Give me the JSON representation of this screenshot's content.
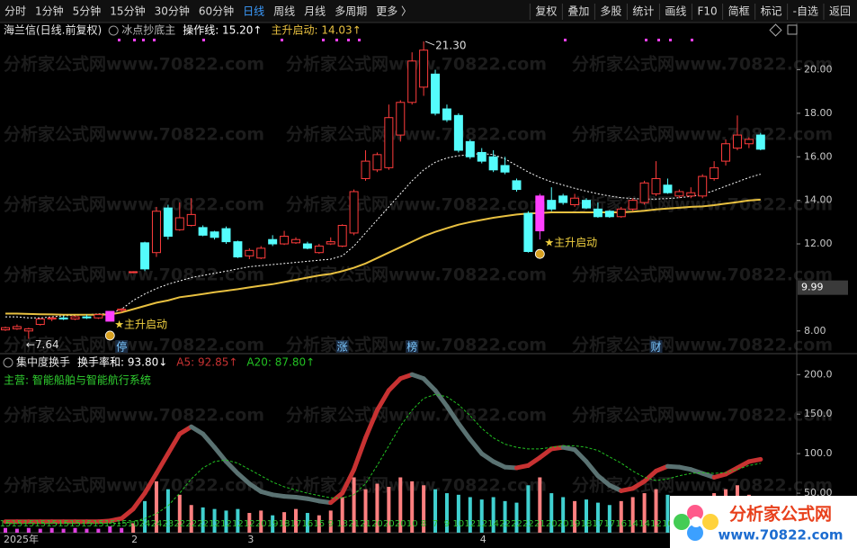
{
  "toolbar": {
    "periods": [
      "分时",
      "1分钟",
      "5分钟",
      "15分钟",
      "30分钟",
      "60分钟",
      "日线",
      "周线",
      "月线",
      "多周期",
      "更多 〉"
    ],
    "active": "日线",
    "tools": [
      "复权",
      "叠加",
      "多股",
      "统计",
      "画线",
      "F10",
      "简框",
      "标记",
      "-自选",
      "返回"
    ]
  },
  "header": {
    "title": "海兰信(日线.前复权)",
    "indicator": "冰点抄底主"
  },
  "watermark": "分析家公式网www.70822.com",
  "logo": {
    "name": "分析家公式网",
    "url": "www.70822.com"
  },
  "chart_data": [
    {
      "type": "candlestick",
      "categories": [
        "2025年",
        null,
        null,
        null,
        null,
        null,
        null,
        null,
        null,
        null,
        null,
        "2",
        null,
        null,
        null,
        null,
        null,
        null,
        null,
        null,
        null,
        "3",
        null,
        null,
        null,
        null,
        null,
        null,
        null,
        null,
        null,
        null,
        null,
        null,
        null,
        null,
        null,
        null,
        null,
        null,
        null,
        "4",
        null,
        null,
        null,
        null,
        null,
        null,
        null,
        null,
        null,
        null,
        null,
        null,
        null,
        null,
        null,
        null,
        null,
        null,
        null,
        null,
        null,
        null,
        null,
        null
      ],
      "candles": [
        [
          8.05,
          8.2,
          8.0,
          8.15
        ],
        [
          8.1,
          8.3,
          8.05,
          8.2
        ],
        [
          8.0,
          8.15,
          7.64,
          8.1
        ],
        [
          8.3,
          8.6,
          8.25,
          8.55
        ],
        [
          8.55,
          8.65,
          8.45,
          8.6
        ],
        [
          8.6,
          8.7,
          8.5,
          8.55
        ],
        [
          8.55,
          8.7,
          8.5,
          8.65
        ],
        [
          8.65,
          8.75,
          8.55,
          8.6
        ],
        [
          8.6,
          8.8,
          8.55,
          8.75
        ],
        [
          8.45,
          8.9,
          8.45,
          8.9
        ],
        [
          8.95,
          9.05,
          8.85,
          9.0
        ],
        [
          10.7,
          10.75,
          10.65,
          10.72
        ],
        [
          12.05,
          12.1,
          10.75,
          10.85
        ],
        [
          11.6,
          13.7,
          11.4,
          13.5
        ],
        [
          13.65,
          13.8,
          12.2,
          12.35
        ],
        [
          12.65,
          13.9,
          12.6,
          13.2
        ],
        [
          12.85,
          14.1,
          12.8,
          13.35
        ],
        [
          12.75,
          12.85,
          12.35,
          12.4
        ],
        [
          12.55,
          12.6,
          12.2,
          12.3
        ],
        [
          12.7,
          12.8,
          12.0,
          12.1
        ],
        [
          12.1,
          12.15,
          11.35,
          11.4
        ],
        [
          11.45,
          11.8,
          11.3,
          11.7
        ],
        [
          11.35,
          11.9,
          11.3,
          11.8
        ],
        [
          12.2,
          12.4,
          11.9,
          12.0
        ],
        [
          12.0,
          12.6,
          11.95,
          12.35
        ],
        [
          12.05,
          12.3,
          12.0,
          12.2
        ],
        [
          12.0,
          12.1,
          11.75,
          11.8
        ],
        [
          11.6,
          12.0,
          11.55,
          11.9
        ],
        [
          12.0,
          12.3,
          11.95,
          12.1
        ],
        [
          11.9,
          12.9,
          11.85,
          12.85
        ],
        [
          12.5,
          14.5,
          12.4,
          14.4
        ],
        [
          15.0,
          16.3,
          14.9,
          15.8
        ],
        [
          15.4,
          16.2,
          15.3,
          16.1
        ],
        [
          15.5,
          18.4,
          15.4,
          17.8
        ],
        [
          17.0,
          18.6,
          16.7,
          18.5
        ],
        [
          18.5,
          20.8,
          18.4,
          20.4
        ],
        [
          19.2,
          21.3,
          18.8,
          20.9
        ],
        [
          19.8,
          20.0,
          17.9,
          18.0
        ],
        [
          18.2,
          18.4,
          17.6,
          17.7
        ],
        [
          17.9,
          18.0,
          16.2,
          16.3
        ],
        [
          16.7,
          16.8,
          15.9,
          16.0
        ],
        [
          16.2,
          16.4,
          15.7,
          15.8
        ],
        [
          16.0,
          16.3,
          15.3,
          15.4
        ],
        [
          15.6,
          16.0,
          15.2,
          15.3
        ],
        [
          14.9,
          15.0,
          14.4,
          14.5
        ],
        [
          13.4,
          13.5,
          11.6,
          11.65
        ],
        [
          12.6,
          14.3,
          12.2,
          14.2
        ],
        [
          14.0,
          14.6,
          13.5,
          13.6
        ],
        [
          14.2,
          14.3,
          13.8,
          13.9
        ],
        [
          13.8,
          14.3,
          13.7,
          14.1
        ],
        [
          14.0,
          14.1,
          13.6,
          13.65
        ],
        [
          13.6,
          13.9,
          13.2,
          13.25
        ],
        [
          13.5,
          13.55,
          13.2,
          13.25
        ],
        [
          13.25,
          13.7,
          13.2,
          13.6
        ],
        [
          13.6,
          14.1,
          13.5,
          14.0
        ],
        [
          13.9,
          14.9,
          13.8,
          14.8
        ],
        [
          14.3,
          15.8,
          14.2,
          15.0
        ],
        [
          14.7,
          15.0,
          14.3,
          14.35
        ],
        [
          14.2,
          14.5,
          14.1,
          14.4
        ],
        [
          14.2,
          14.6,
          14.1,
          14.35
        ],
        [
          14.2,
          15.2,
          14.1,
          15.1
        ],
        [
          15.0,
          15.8,
          14.9,
          15.5
        ],
        [
          15.8,
          16.8,
          15.6,
          16.6
        ],
        [
          16.4,
          17.9,
          16.3,
          17.0
        ],
        [
          16.6,
          16.9,
          16.4,
          16.8
        ],
        [
          17.0,
          17.1,
          16.3,
          16.35
        ]
      ],
      "palette": {
        "up": "#ff3c3c",
        "down": "#54fcfc",
        "signal": "#ff40ff"
      },
      "annotations": [
        null,
        null,
        null,
        null,
        null,
        null,
        null,
        null,
        null,
        "★主升启动",
        null,
        null,
        null,
        null,
        null,
        null,
        null,
        null,
        null,
        null,
        null,
        null,
        null,
        null,
        null,
        null,
        null,
        null,
        null,
        null,
        null,
        null,
        null,
        null,
        null,
        null,
        null,
        null,
        null,
        null,
        null,
        null,
        null,
        null,
        null,
        null,
        "★主升启动",
        null,
        null,
        null,
        null,
        null,
        null,
        null,
        null,
        null,
        null,
        null,
        null,
        null,
        null,
        null,
        null,
        null,
        null,
        null
      ],
      "events": [
        null,
        null,
        null,
        null,
        null,
        null,
        null,
        null,
        null,
        null,
        "停",
        null,
        null,
        null,
        null,
        null,
        null,
        null,
        null,
        null,
        null,
        null,
        null,
        null,
        null,
        null,
        null,
        null,
        null,
        "涨",
        null,
        null,
        null,
        null,
        null,
        "榜",
        null,
        null,
        null,
        null,
        null,
        null,
        null,
        null,
        null,
        null,
        null,
        null,
        null,
        null,
        null,
        null,
        null,
        null,
        null,
        null,
        "财",
        null,
        null,
        null,
        null,
        null,
        null,
        null,
        null,
        null
      ],
      "series": [
        {
          "name": "操作线: 15.20↑",
          "color": "#ffffff",
          "dash": true,
          "values": [
            8.65,
            8.65,
            8.6,
            8.6,
            8.65,
            8.7,
            8.72,
            8.75,
            8.78,
            8.8,
            9.0,
            9.4,
            9.7,
            9.95,
            10.15,
            10.3,
            10.45,
            10.55,
            10.65,
            10.75,
            10.85,
            10.95,
            11.0,
            11.05,
            11.1,
            11.15,
            11.2,
            11.25,
            11.3,
            11.45,
            11.9,
            12.5,
            13.1,
            13.7,
            14.3,
            14.9,
            15.4,
            15.75,
            15.95,
            16.05,
            16.1,
            16.15,
            16.1,
            15.9,
            15.6,
            15.3,
            15.05,
            14.85,
            14.7,
            14.55,
            14.42,
            14.3,
            14.2,
            14.12,
            14.08,
            14.06,
            14.06,
            14.08,
            14.12,
            14.18,
            14.28,
            14.45,
            14.65,
            14.85,
            15.05,
            15.2
          ]
        },
        {
          "name": "主升启动: 14.03↑",
          "color": "#e8c040",
          "dash": false,
          "values": [
            8.8,
            8.8,
            8.78,
            8.77,
            8.76,
            8.75,
            8.75,
            8.75,
            8.75,
            8.76,
            8.85,
            9.0,
            9.15,
            9.3,
            9.4,
            9.55,
            9.62,
            9.7,
            9.78,
            9.85,
            9.92,
            10.0,
            10.08,
            10.15,
            10.25,
            10.35,
            10.45,
            10.55,
            10.62,
            10.75,
            10.9,
            11.1,
            11.35,
            11.6,
            11.85,
            12.1,
            12.35,
            12.55,
            12.72,
            12.88,
            13.0,
            13.1,
            13.2,
            13.28,
            13.35,
            13.4,
            13.42,
            13.45,
            13.45,
            13.45,
            13.45,
            13.45,
            13.45,
            13.45,
            13.48,
            13.52,
            13.58,
            13.62,
            13.66,
            13.7,
            13.72,
            13.78,
            13.85,
            13.92,
            14.0,
            14.03
          ]
        }
      ],
      "ylim": [
        7.0,
        21.55
      ],
      "yticks": [
        {
          "value": 20,
          "label": "20.00"
        },
        {
          "value": 18,
          "label": "18.00"
        },
        {
          "value": 16,
          "label": "16.00"
        },
        {
          "value": 14,
          "label": "14.00"
        },
        {
          "value": 12,
          "label": "12.00"
        },
        {
          "value": 8,
          "label": "8.00"
        }
      ],
      "current": 9.99,
      "high_label": {
        "value": 21.3,
        "label": "21.30"
      },
      "low_label": {
        "value": 7.64,
        "label": "←7.64"
      }
    },
    {
      "type": "turnover",
      "title": "集中度换手",
      "note": "主营: 智能船舶与智能航行系统",
      "bars": {
        "name": "换手率和: 93.80↓",
        "color": "#ffffff",
        "up_color": "#ff8080",
        "down_color": "#40d0d0",
        "small_color": "#e040e0",
        "values": [
          6,
          5,
          6,
          5,
          6,
          5,
          6,
          5,
          5,
          8,
          6,
          12,
          40,
          65,
          55,
          48,
          35,
          32,
          30,
          28,
          30,
          25,
          28,
          22,
          26,
          30,
          25,
          22,
          28,
          45,
          70,
          55,
          62,
          58,
          70,
          65,
          60,
          55,
          50,
          48,
          45,
          42,
          45,
          40,
          38,
          60,
          70,
          50,
          45,
          40,
          42,
          38,
          35,
          40,
          45,
          50,
          55,
          48,
          42,
          40,
          45,
          50,
          55,
          60,
          48,
          45
        ]
      },
      "series": [
        {
          "name": "A5: 92.85↑",
          "color": "#c83232",
          "down_color": "#5a7272",
          "values": [
            14,
            14,
            14,
            14,
            14,
            14,
            14,
            14,
            14,
            15,
            18,
            30,
            50,
            75,
            100,
            125,
            134,
            125,
            108,
            90,
            75,
            62,
            52,
            48,
            46,
            45,
            43,
            40,
            38,
            50,
            80,
            120,
            155,
            180,
            195,
            200,
            195,
            180,
            160,
            138,
            118,
            100,
            90,
            83,
            82,
            85,
            95,
            106,
            108,
            105,
            90,
            72,
            60,
            53,
            56,
            65,
            78,
            84,
            83,
            80,
            75,
            70,
            74,
            82,
            90,
            92.85
          ]
        },
        {
          "name": "A20: 87.80↑",
          "color": "#22c022",
          "values": [
            12,
            12,
            12,
            12,
            12,
            12,
            12,
            12,
            12,
            12,
            12,
            14,
            18,
            24,
            34,
            50,
            68,
            82,
            90,
            92,
            88,
            80,
            72,
            64,
            58,
            54,
            50,
            47,
            44,
            44,
            48,
            62,
            85,
            110,
            135,
            155,
            170,
            175,
            172,
            162,
            148,
            132,
            120,
            112,
            108,
            106,
            106,
            108,
            110,
            110,
            108,
            104,
            96,
            88,
            78,
            70,
            66,
            68,
            72,
            75,
            76,
            75,
            76,
            80,
            85,
            87.8
          ]
        }
      ],
      "day_values": [
        15,
        15,
        15,
        15,
        15,
        15,
        15,
        15,
        15,
        15,
        15,
        10,
        24,
        24,
        23,
        22,
        22,
        22,
        12,
        12,
        12,
        12,
        20,
        19,
        18,
        17,
        16,
        15,
        9,
        13,
        21,
        21,
        20,
        20,
        20,
        10,
        8,
        7,
        9,
        10,
        12,
        12,
        14,
        22,
        22,
        22,
        21,
        20,
        20,
        19,
        18,
        17,
        17,
        16,
        14,
        14,
        12,
        10,
        null,
        null,
        null,
        null,
        null,
        null,
        null,
        null
      ],
      "ylim": [
        0,
        214
      ],
      "yticks": [
        {
          "value": 200,
          "label": "200.0"
        },
        {
          "value": 150,
          "label": "150.0"
        },
        {
          "value": 100,
          "label": "100.0"
        },
        {
          "value": 50,
          "label": "50.00"
        }
      ]
    }
  ]
}
